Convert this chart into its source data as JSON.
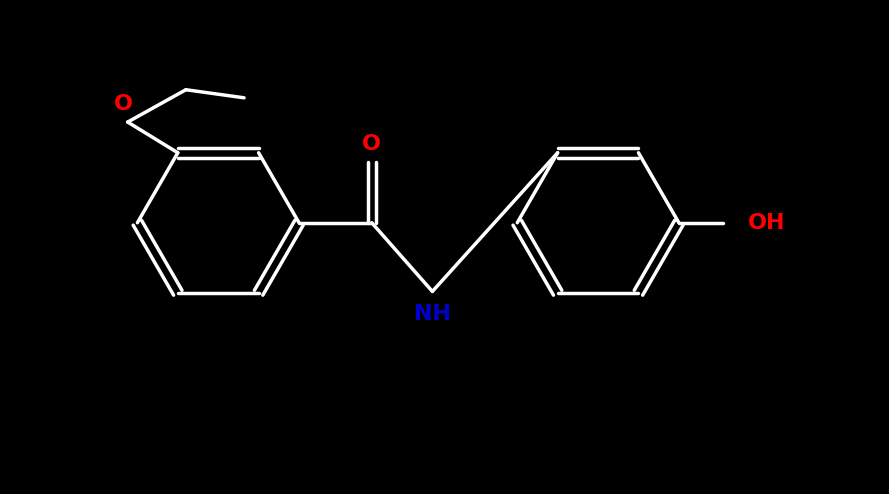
{
  "background": "#000000",
  "bond_color": "#ffffff",
  "O_color": "#ff0000",
  "N_color": "#0000cd",
  "lw": 2.5,
  "dbo": 0.06,
  "r": 1.0,
  "fs": 16,
  "fig_w": 8.89,
  "fig_h": 4.94,
  "xlim": [
    -0.5,
    10.5
  ],
  "ylim": [
    -2.8,
    2.8
  ]
}
